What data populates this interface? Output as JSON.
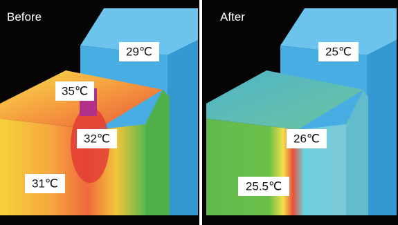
{
  "panels": [
    {
      "label": "Before",
      "temperatures": [
        "29℃",
        "35℃",
        "32℃",
        "31℃"
      ]
    },
    {
      "label": "After",
      "temperatures": [
        "25℃",
        "26℃",
        "25.5℃"
      ]
    }
  ]
}
